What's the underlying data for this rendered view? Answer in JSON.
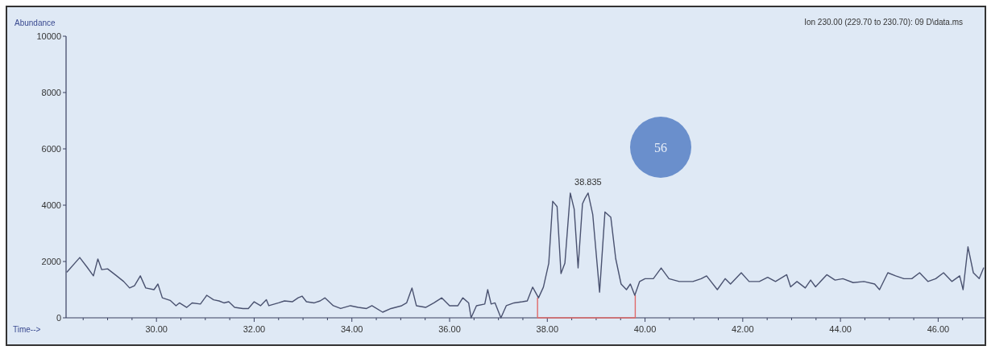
{
  "chart_data": {
    "type": "line",
    "ylabel": "Abundance",
    "xlabel": "Time-->",
    "annotations": [
      "Ion 230.00 (229.70 to 230.70): 09 D\\data.ms",
      {
        "text": "38.835",
        "x": 38.835,
        "y": 4430
      },
      "56"
    ],
    "xlim": [
      28.15,
      46.95
    ],
    "ylim": [
      0,
      10000
    ],
    "yticks": [
      0,
      2000,
      4000,
      6000,
      8000,
      10000
    ],
    "xticks": [
      {
        "value": 28.5,
        "label": null
      },
      {
        "value": 29,
        "label": null
      },
      {
        "value": 29.5,
        "label": null
      },
      {
        "value": 30,
        "label": "30.00"
      },
      {
        "value": 30.5,
        "label": null
      },
      {
        "value": 31,
        "label": null
      },
      {
        "value": 31.5,
        "label": null
      },
      {
        "value": 32,
        "label": "32.00"
      },
      {
        "value": 32.5,
        "label": null
      },
      {
        "value": 33,
        "label": null
      },
      {
        "value": 33.5,
        "label": null
      },
      {
        "value": 34,
        "label": "34.00"
      },
      {
        "value": 34.5,
        "label": null
      },
      {
        "value": 35,
        "label": null
      },
      {
        "value": 35.5,
        "label": null
      },
      {
        "value": 36,
        "label": "36.00"
      },
      {
        "value": 36.5,
        "label": null
      },
      {
        "value": 37,
        "label": null
      },
      {
        "value": 37.5,
        "label": null
      },
      {
        "value": 38,
        "label": "38.00"
      },
      {
        "value": 38.5,
        "label": null
      },
      {
        "value": 39,
        "label": null
      },
      {
        "value": 39.5,
        "label": null
      },
      {
        "value": 40,
        "label": "40.00"
      },
      {
        "value": 40.5,
        "label": null
      },
      {
        "value": 41,
        "label": null
      },
      {
        "value": 41.5,
        "label": null
      },
      {
        "value": 42,
        "label": "42.00"
      },
      {
        "value": 42.5,
        "label": null
      },
      {
        "value": 43,
        "label": null
      },
      {
        "value": 43.5,
        "label": null
      },
      {
        "value": 44,
        "label": "44.00"
      },
      {
        "value": 44.5,
        "label": null
      },
      {
        "value": 45,
        "label": null
      },
      {
        "value": 45.5,
        "label": null
      },
      {
        "value": 46,
        "label": "46.00"
      },
      {
        "value": 46.5,
        "label": null
      }
    ],
    "grid": false,
    "marker": "none",
    "line_style": "solid",
    "series": [
      {
        "color": "#e06a6a",
        "x": [
          37.8,
          37.8,
          39.8,
          39.8
        ],
        "values": [
          710,
          0,
          0,
          800
        ]
      },
      {
        "color": "#4a5270",
        "x": [
          28.17,
          28.43,
          28.58,
          28.71,
          28.8,
          28.88,
          29.0,
          29.17,
          29.33,
          29.45,
          29.55,
          29.67,
          29.78,
          29.95,
          30.03,
          30.12,
          30.28,
          30.4,
          30.47,
          30.62,
          30.73,
          30.9,
          31.03,
          31.17,
          31.28,
          31.38,
          31.48,
          31.6,
          31.77,
          31.88,
          32.0,
          32.13,
          32.25,
          32.3,
          32.5,
          32.62,
          32.78,
          32.9,
          32.98,
          33.07,
          33.23,
          33.35,
          33.45,
          33.62,
          33.77,
          33.97,
          34.13,
          34.3,
          34.41,
          34.63,
          34.8,
          35.02,
          35.12,
          35.23,
          35.32,
          35.51,
          35.68,
          35.84,
          36.0,
          36.17,
          36.27,
          36.39,
          36.44,
          36.55,
          36.72,
          36.78,
          36.85,
          36.93,
          37.05,
          37.16,
          37.32,
          37.49,
          37.59,
          37.7,
          37.82,
          37.92,
          38.03,
          38.11,
          38.2,
          38.28,
          38.36,
          38.47,
          38.55,
          38.63,
          38.72,
          38.77,
          38.835,
          38.93,
          39.07,
          39.18,
          39.3,
          39.4,
          39.51,
          39.62,
          39.7,
          39.79,
          39.89,
          40.0,
          40.17,
          40.33,
          40.49,
          40.7,
          40.98,
          41.15,
          41.26,
          41.48,
          41.64,
          41.75,
          41.97,
          42.13,
          42.34,
          42.51,
          42.67,
          42.9,
          42.98,
          43.11,
          43.28,
          43.39,
          43.49,
          43.72,
          43.89,
          44.05,
          44.26,
          44.48,
          44.7,
          44.8,
          44.97,
          45.13,
          45.3,
          45.46,
          45.62,
          45.79,
          45.95,
          46.11,
          46.28,
          46.44,
          46.51,
          46.61,
          46.72,
          46.84,
          46.93
        ],
        "values": [
          1630,
          2140,
          1800,
          1490,
          2090,
          1710,
          1740,
          1510,
          1290,
          1060,
          1140,
          1490,
          1060,
          1000,
          1200,
          710,
          620,
          430,
          530,
          370,
          530,
          490,
          800,
          640,
          600,
          530,
          570,
          370,
          330,
          330,
          570,
          430,
          640,
          430,
          530,
          600,
          570,
          710,
          770,
          570,
          530,
          600,
          710,
          430,
          330,
          430,
          370,
          330,
          430,
          200,
          330,
          430,
          530,
          1060,
          430,
          370,
          530,
          710,
          430,
          430,
          710,
          530,
          0,
          430,
          490,
          1000,
          490,
          530,
          0,
          430,
          530,
          570,
          600,
          1090,
          710,
          1090,
          1940,
          4140,
          3950,
          1570,
          1940,
          4430,
          3860,
          1770,
          4050,
          4240,
          4430,
          3670,
          910,
          3760,
          3570,
          2100,
          1200,
          1000,
          1200,
          800,
          1290,
          1390,
          1390,
          1770,
          1390,
          1290,
          1290,
          1390,
          1490,
          1000,
          1390,
          1200,
          1600,
          1290,
          1290,
          1440,
          1290,
          1530,
          1100,
          1290,
          1060,
          1340,
          1100,
          1530,
          1340,
          1390,
          1250,
          1290,
          1200,
          1000,
          1600,
          1490,
          1390,
          1390,
          1600,
          1290,
          1390,
          1600,
          1290,
          1490,
          1000,
          2520,
          1600,
          1390,
          1770
        ]
      }
    ]
  }
}
